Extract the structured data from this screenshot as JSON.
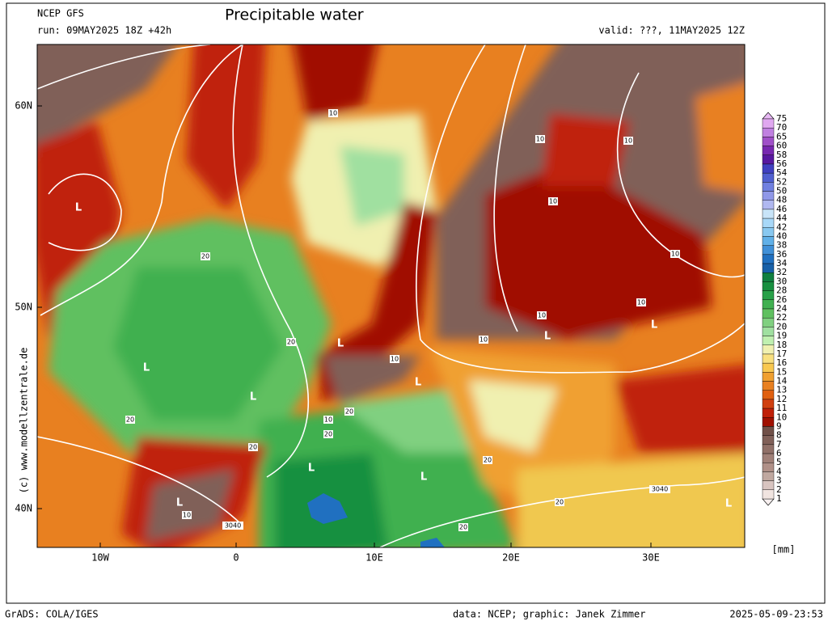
{
  "header": {
    "model": "NCEP GFS",
    "title": "Precipitable water",
    "run": "run: 09MAY2025 18Z +42h",
    "valid": "valid: ???, 11MAY2025 12Z"
  },
  "map": {
    "credit": "(c) www.modellzentrale.de",
    "lat_labels": [
      "60N",
      "50N",
      "40N"
    ],
    "lon_labels": [
      "10W",
      "0",
      "10E",
      "20E",
      "30E"
    ],
    "low_label": "L",
    "contour_labels": [
      "10",
      "20",
      "3040"
    ]
  },
  "colorbar": {
    "unit": "[mm]",
    "levels": [
      "75",
      "70",
      "65",
      "60",
      "58",
      "56",
      "54",
      "52",
      "50",
      "48",
      "46",
      "44",
      "42",
      "40",
      "38",
      "36",
      "34",
      "32",
      "30",
      "28",
      "26",
      "24",
      "22",
      "20",
      "19",
      "18",
      "17",
      "16",
      "15",
      "14",
      "13",
      "12",
      "11",
      "10",
      "9",
      "8",
      "7",
      "6",
      "5",
      "4",
      "3",
      "2",
      "1"
    ],
    "colors": [
      "#e0a8f0",
      "#c080e0",
      "#a050c8",
      "#7828b0",
      "#5818a0",
      "#4040c0",
      "#5060d0",
      "#7080e0",
      "#9098e8",
      "#b0b8f0",
      "#c8e4f8",
      "#a8d8f8",
      "#88c8f0",
      "#60b0e8",
      "#4090d8",
      "#2070c0",
      "#1860a8",
      "#108040",
      "#189040",
      "#28a048",
      "#40b050",
      "#60c060",
      "#80d080",
      "#a0e0a0",
      "#c0f0b0",
      "#f0f0b0",
      "#f8e080",
      "#f8c850",
      "#f0a030",
      "#e88020",
      "#e06010",
      "#d04010",
      "#c02008",
      "#a01000",
      "#705048",
      "#806058",
      "#907068",
      "#a08078",
      "#b09088",
      "#c0a8a0",
      "#d8c4c0",
      "#f0e4e0"
    ],
    "top_color": "#e8b8f4",
    "bottom_color": "#f8f0f0"
  },
  "footer": {
    "software": "GrADS: COLA/IGES",
    "source": "data: NCEP; graphic: Janek Zimmer",
    "timestamp": "2025-05-09-23:53"
  }
}
